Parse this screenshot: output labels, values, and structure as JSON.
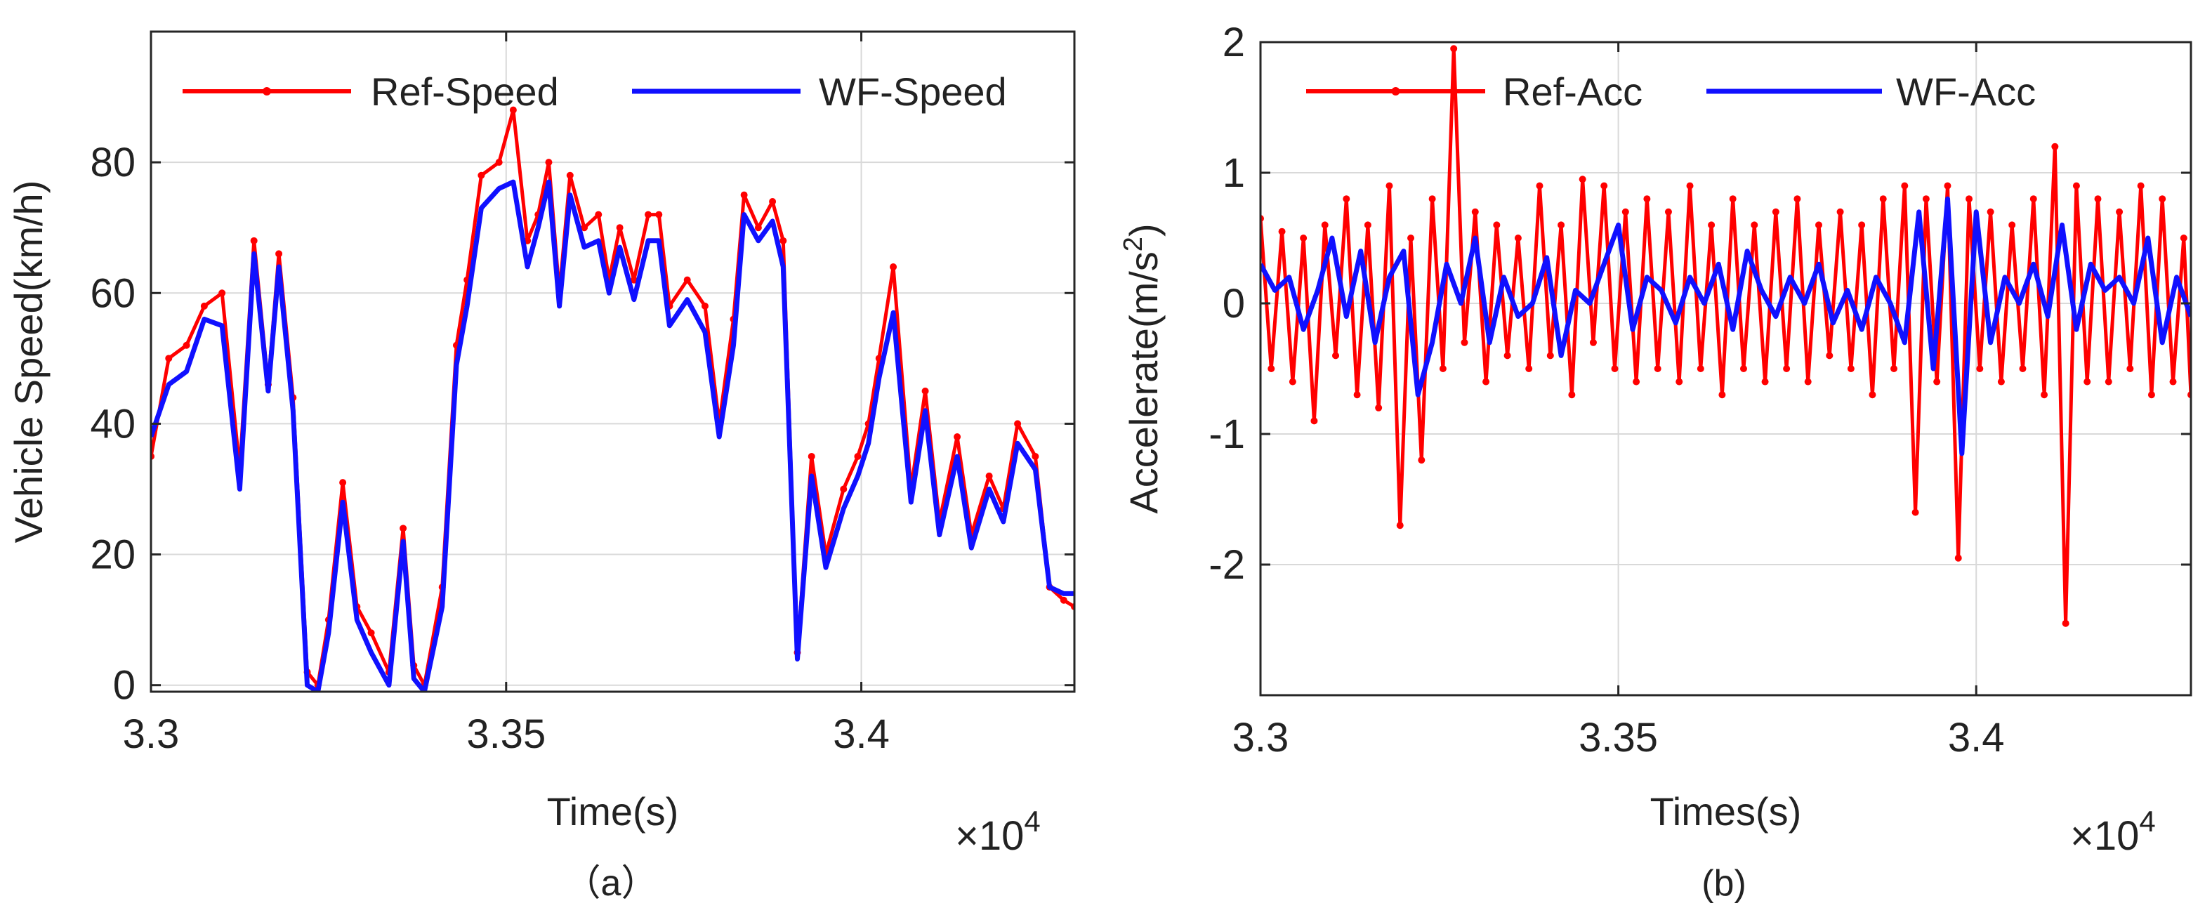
{
  "colors": {
    "ref": "#ff0000",
    "wf": "#1010ff",
    "axis": "#262626",
    "grid": "#d9d9d9"
  },
  "chart_data": [
    {
      "type": "line",
      "caption": "（a）",
      "xlabel": "Time(s)",
      "ylabel": "Vehicle Speed(km/h)",
      "x_exponent_base": "×10",
      "x_exponent_power": "4",
      "xlim": [
        3.3,
        3.43
      ],
      "ylim": [
        -1,
        100
      ],
      "xticks": [
        3.3,
        3.35,
        3.4
      ],
      "xtick_labels": [
        "3.3",
        "3.35",
        "3.4"
      ],
      "yticks": [
        0,
        20,
        40,
        60,
        80
      ],
      "ytick_labels": [
        "0",
        "20",
        "40",
        "60",
        "80"
      ],
      "grid": true,
      "legend_position": "top",
      "series": [
        {
          "name": "Ref-Speed",
          "color_key": "ref",
          "markers": true,
          "x": [
            3.3,
            3.3025,
            3.305,
            3.3075,
            3.31,
            3.3125,
            3.3145,
            3.3165,
            3.318,
            3.32,
            3.322,
            3.3235,
            3.325,
            3.327,
            3.329,
            3.331,
            3.3335,
            3.3355,
            3.337,
            3.3385,
            3.341,
            3.343,
            3.3445,
            3.3465,
            3.349,
            3.351,
            3.353,
            3.3545,
            3.356,
            3.3575,
            3.359,
            3.361,
            3.363,
            3.3645,
            3.366,
            3.368,
            3.37,
            3.3715,
            3.373,
            3.3755,
            3.378,
            3.38,
            3.382,
            3.3835,
            3.3855,
            3.3875,
            3.389,
            3.391,
            3.393,
            3.395,
            3.3975,
            3.3995,
            3.401,
            3.4025,
            3.4045,
            3.407,
            3.409,
            3.411,
            3.4135,
            3.4155,
            3.418,
            3.42,
            3.422,
            3.4245,
            3.4265,
            3.4285,
            3.43
          ],
          "y": [
            35,
            50,
            52,
            58,
            60,
            33,
            68,
            46,
            66,
            44,
            2,
            0,
            10,
            31,
            12,
            8,
            2,
            24,
            3,
            0,
            15,
            52,
            62,
            78,
            80,
            88,
            68,
            72,
            80,
            60,
            78,
            70,
            72,
            62,
            70,
            62,
            72,
            72,
            58,
            62,
            58,
            40,
            56,
            75,
            70,
            74,
            68,
            5,
            35,
            20,
            30,
            35,
            40,
            50,
            64,
            30,
            45,
            25,
            38,
            23,
            32,
            27,
            40,
            35,
            15,
            13,
            12
          ]
        },
        {
          "name": "WF-Speed",
          "color_key": "wf",
          "markers": false,
          "x": [
            3.3,
            3.3025,
            3.305,
            3.3075,
            3.31,
            3.3125,
            3.3145,
            3.3165,
            3.318,
            3.32,
            3.322,
            3.3235,
            3.325,
            3.327,
            3.329,
            3.331,
            3.3335,
            3.3355,
            3.337,
            3.3385,
            3.341,
            3.343,
            3.3445,
            3.3465,
            3.349,
            3.351,
            3.353,
            3.3545,
            3.356,
            3.3575,
            3.359,
            3.361,
            3.363,
            3.3645,
            3.366,
            3.368,
            3.37,
            3.3715,
            3.373,
            3.3755,
            3.378,
            3.38,
            3.382,
            3.3835,
            3.3855,
            3.3875,
            3.389,
            3.391,
            3.393,
            3.395,
            3.3975,
            3.3995,
            3.401,
            3.4025,
            3.4045,
            3.407,
            3.409,
            3.411,
            3.4135,
            3.4155,
            3.418,
            3.42,
            3.422,
            3.4245,
            3.4265,
            3.4285,
            3.43
          ],
          "y": [
            38,
            46,
            48,
            56,
            55,
            30,
            66,
            45,
            64,
            42,
            0,
            -1,
            8,
            28,
            10,
            5,
            0,
            22,
            1,
            -1,
            12,
            49,
            58,
            73,
            76,
            77,
            64,
            70,
            77,
            58,
            75,
            67,
            68,
            60,
            67,
            59,
            68,
            68,
            55,
            59,
            54,
            38,
            52,
            72,
            68,
            71,
            64,
            4,
            32,
            18,
            27,
            32,
            37,
            47,
            57,
            28,
            42,
            23,
            35,
            21,
            30,
            25,
            37,
            33,
            15,
            14,
            14
          ]
        }
      ]
    },
    {
      "type": "line",
      "caption": "(b)",
      "xlabel": "Times(s)",
      "ylabel": "Accelerate(m/s",
      "ylabel_superscript": "2",
      "ylabel_close": ")",
      "x_exponent_base": "×10",
      "x_exponent_power": "4",
      "xlim": [
        3.3,
        3.43
      ],
      "ylim": [
        -3,
        2
      ],
      "xticks": [
        3.3,
        3.35,
        3.4
      ],
      "xtick_labels": [
        "3.3",
        "3.35",
        "3.4"
      ],
      "yticks": [
        -2,
        -1,
        0,
        1,
        2
      ],
      "ytick_labels": [
        "-2",
        "-1",
        "0",
        "1",
        "2"
      ],
      "grid": true,
      "legend_position": "top",
      "series": [
        {
          "name": "Ref-Acc",
          "color_key": "ref",
          "markers": true,
          "x": [
            3.3,
            3.3015,
            3.303,
            3.3045,
            3.306,
            3.3075,
            3.309,
            3.3105,
            3.312,
            3.3135,
            3.315,
            3.3165,
            3.318,
            3.3195,
            3.321,
            3.3225,
            3.324,
            3.3255,
            3.327,
            3.3285,
            3.33,
            3.3315,
            3.333,
            3.3345,
            3.336,
            3.3375,
            3.339,
            3.3405,
            3.342,
            3.3435,
            3.345,
            3.3465,
            3.348,
            3.3495,
            3.351,
            3.3525,
            3.354,
            3.3555,
            3.357,
            3.3585,
            3.36,
            3.3615,
            3.363,
            3.3645,
            3.366,
            3.3675,
            3.369,
            3.3705,
            3.372,
            3.3735,
            3.375,
            3.3765,
            3.378,
            3.3795,
            3.381,
            3.3825,
            3.384,
            3.3855,
            3.387,
            3.3885,
            3.39,
            3.3915,
            3.393,
            3.3945,
            3.396,
            3.3975,
            3.399,
            3.4005,
            3.402,
            3.4035,
            3.405,
            3.4065,
            3.408,
            3.4095,
            3.411,
            3.4125,
            3.414,
            3.4155,
            3.417,
            3.4185,
            3.42,
            3.4215,
            3.423,
            3.4245,
            3.426,
            3.4275,
            3.429,
            3.43
          ],
          "y": [
            0.65,
            -0.5,
            0.55,
            -0.6,
            0.5,
            -0.9,
            0.6,
            -0.4,
            0.8,
            -0.7,
            0.6,
            -0.8,
            0.9,
            -1.7,
            0.5,
            -1.2,
            0.8,
            -0.5,
            1.95,
            -0.3,
            0.7,
            -0.6,
            0.6,
            -0.4,
            0.5,
            -0.5,
            0.9,
            -0.4,
            0.6,
            -0.7,
            0.95,
            -0.3,
            0.9,
            -0.5,
            0.7,
            -0.6,
            0.8,
            -0.5,
            0.7,
            -0.6,
            0.9,
            -0.5,
            0.6,
            -0.7,
            0.8,
            -0.5,
            0.6,
            -0.6,
            0.7,
            -0.5,
            0.8,
            -0.6,
            0.6,
            -0.4,
            0.7,
            -0.5,
            0.6,
            -0.7,
            0.8,
            -0.5,
            0.9,
            -1.6,
            0.8,
            -0.6,
            0.9,
            -1.95,
            0.8,
            -0.5,
            0.7,
            -0.6,
            0.6,
            -0.5,
            0.8,
            -0.7,
            1.2,
            -2.45,
            0.9,
            -0.6,
            0.8,
            -0.6,
            0.7,
            -0.5,
            0.9,
            -0.7,
            0.8,
            -0.6,
            0.5,
            -0.7
          ]
        },
        {
          "name": "WF-Acc",
          "color_key": "wf",
          "markers": false,
          "x": [
            3.3,
            3.302,
            3.304,
            3.306,
            3.308,
            3.31,
            3.312,
            3.314,
            3.316,
            3.318,
            3.32,
            3.322,
            3.324,
            3.326,
            3.328,
            3.33,
            3.332,
            3.334,
            3.336,
            3.338,
            3.34,
            3.342,
            3.344,
            3.346,
            3.348,
            3.35,
            3.352,
            3.354,
            3.356,
            3.358,
            3.36,
            3.362,
            3.364,
            3.366,
            3.368,
            3.37,
            3.372,
            3.374,
            3.376,
            3.378,
            3.38,
            3.382,
            3.384,
            3.386,
            3.388,
            3.39,
            3.392,
            3.394,
            3.396,
            3.398,
            3.4,
            3.402,
            3.404,
            3.406,
            3.408,
            3.41,
            3.412,
            3.414,
            3.416,
            3.418,
            3.42,
            3.422,
            3.424,
            3.426,
            3.428,
            3.43
          ],
          "y": [
            0.3,
            0.1,
            0.2,
            -0.2,
            0.1,
            0.5,
            -0.1,
            0.4,
            -0.3,
            0.2,
            0.4,
            -0.7,
            -0.3,
            0.3,
            0.0,
            0.5,
            -0.3,
            0.2,
            -0.1,
            0.0,
            0.35,
            -0.4,
            0.1,
            0.0,
            0.3,
            0.6,
            -0.2,
            0.2,
            0.1,
            -0.15,
            0.2,
            0.0,
            0.3,
            -0.2,
            0.4,
            0.1,
            -0.1,
            0.2,
            0.0,
            0.3,
            -0.15,
            0.1,
            -0.2,
            0.2,
            0.0,
            -0.3,
            0.7,
            -0.5,
            0.8,
            -1.15,
            0.7,
            -0.3,
            0.2,
            0.0,
            0.3,
            -0.1,
            0.6,
            -0.2,
            0.3,
            0.1,
            0.2,
            0.0,
            0.5,
            -0.3,
            0.2,
            -0.1
          ]
        }
      ]
    }
  ]
}
